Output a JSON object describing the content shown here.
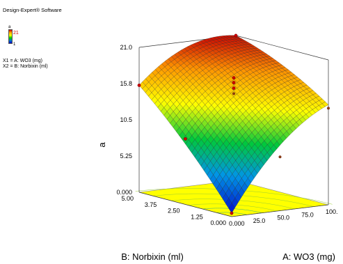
{
  "side_panel": {
    "software": "Design-Expert® Software",
    "response_name": "a",
    "legend_high": "21",
    "legend_low": "1",
    "factor_x1": "X1 = A: WO3 (mg)",
    "factor_x2": "X2 = B: Norbixin (ml)"
  },
  "chart_data": {
    "type": "3d-surface",
    "xlabel": "A: WO3 (mg)",
    "ylabel": "B: Norbixin (ml)",
    "zlabel": "a",
    "xlim": [
      0,
      100
    ],
    "ylim": [
      0,
      5
    ],
    "zlim": [
      0,
      21
    ],
    "x_ticks": [
      "0.000",
      "25.0",
      "50.0",
      "75.0",
      "100."
    ],
    "y_ticks": [
      "0.000",
      "1.25",
      "2.50",
      "3.75",
      "5.00"
    ],
    "z_ticks": [
      "0.000",
      "5.25",
      "10.5",
      "15.8",
      "21.0"
    ],
    "surface_corners": [
      {
        "x": 0,
        "y": 0,
        "z": 0.5
      },
      {
        "x": 100,
        "y": 0,
        "z": 14.5
      },
      {
        "x": 0,
        "y": 5,
        "z": 15.5
      },
      {
        "x": 100,
        "y": 5,
        "z": 21.0
      }
    ],
    "design_points": [
      {
        "x": 0,
        "y": 0,
        "z": 0.5
      },
      {
        "x": 100,
        "y": 0,
        "z": 14.0
      },
      {
        "x": 0,
        "y": 5,
        "z": 15.5
      },
      {
        "x": 100,
        "y": 5,
        "z": 21.0
      },
      {
        "x": 50,
        "y": 2.5,
        "z": 15.2
      },
      {
        "x": 50,
        "y": 2.5,
        "z": 16.0
      },
      {
        "x": 50,
        "y": 2.5,
        "z": 16.8
      },
      {
        "x": 50,
        "y": 2.5,
        "z": 17.5
      },
      {
        "x": 50,
        "y": 0,
        "z": 7.8
      },
      {
        "x": 0,
        "y": 2.5,
        "z": 9.5
      }
    ],
    "grid": true,
    "contour_floor": true
  }
}
